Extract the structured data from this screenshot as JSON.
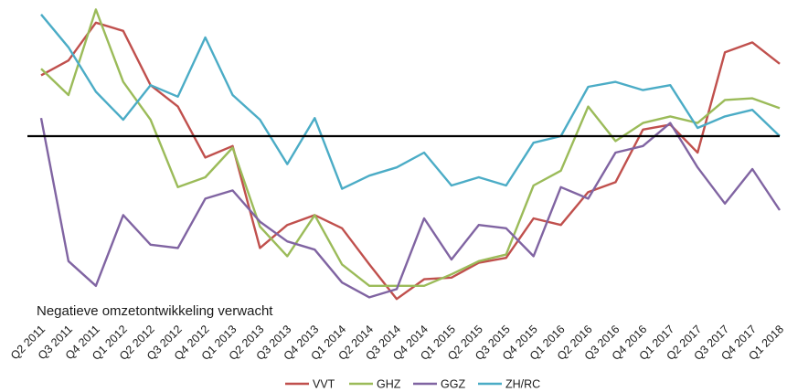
{
  "chart_data": {
    "type": "line",
    "title": "",
    "xlabel": "",
    "ylabel": "",
    "grid": false,
    "legend_position": "bottom",
    "zero_line": true,
    "annotation": "Negatieve omzetontwikkeling verwacht",
    "ylim": [
      -1.0,
      0.78
    ],
    "categories": [
      "Q2 2011",
      "Q3 2011",
      "Q4 2011",
      "Q1 2012",
      "Q2 2012",
      "Q3 2012",
      "Q4 2012",
      "Q1 2013",
      "Q2 2013",
      "Q3 2013",
      "Q4 2013",
      "Q1 2014",
      "Q2 2014",
      "Q3 2014",
      "Q4 2014",
      "Q1 2015",
      "Q2 2015",
      "Q3 2015",
      "Q4 2015",
      "Q1 2016",
      "Q2 2016",
      "Q3 2016",
      "Q4 2016",
      "Q1 2017",
      "Q2 2017",
      "Q3 2017",
      "Q4 2017",
      "Q1 2018"
    ],
    "series": [
      {
        "name": "VVT",
        "color": "#C0504D",
        "values": [
          0.37,
          0.46,
          0.69,
          0.64,
          0.31,
          0.18,
          -0.13,
          -0.06,
          -0.68,
          -0.54,
          -0.48,
          -0.56,
          -0.78,
          -0.99,
          -0.87,
          -0.86,
          -0.77,
          -0.74,
          -0.5,
          -0.54,
          -0.34,
          -0.28,
          0.04,
          0.07,
          -0.1,
          0.51,
          0.57,
          0.44
        ]
      },
      {
        "name": "GHZ",
        "color": "#9BBB59",
        "values": [
          0.41,
          0.25,
          0.77,
          0.33,
          0.1,
          -0.31,
          -0.25,
          -0.07,
          -0.55,
          -0.73,
          -0.48,
          -0.78,
          -0.91,
          -0.91,
          -0.91,
          -0.84,
          -0.76,
          -0.72,
          -0.3,
          -0.21,
          0.18,
          -0.03,
          0.08,
          0.12,
          0.08,
          0.22,
          0.23,
          0.17
        ]
      },
      {
        "name": "GGZ",
        "color": "#8064A2",
        "values": [
          0.11,
          -0.76,
          -0.91,
          -0.48,
          -0.66,
          -0.68,
          -0.38,
          -0.33,
          -0.52,
          -0.64,
          -0.69,
          -0.89,
          -0.98,
          -0.93,
          -0.5,
          -0.75,
          -0.54,
          -0.56,
          -0.73,
          -0.31,
          -0.38,
          -0.1,
          -0.06,
          0.08,
          -0.19,
          -0.41,
          -0.2,
          -0.45
        ]
      },
      {
        "name": "ZH/RC",
        "color": "#4BACC6",
        "values": [
          0.74,
          0.54,
          0.27,
          0.1,
          0.31,
          0.24,
          0.6,
          0.25,
          0.1,
          -0.17,
          0.11,
          -0.32,
          -0.24,
          -0.19,
          -0.1,
          -0.3,
          -0.25,
          -0.3,
          -0.04,
          0.0,
          0.3,
          0.33,
          0.28,
          0.31,
          0.05,
          0.12,
          0.16,
          0.0
        ]
      }
    ]
  }
}
